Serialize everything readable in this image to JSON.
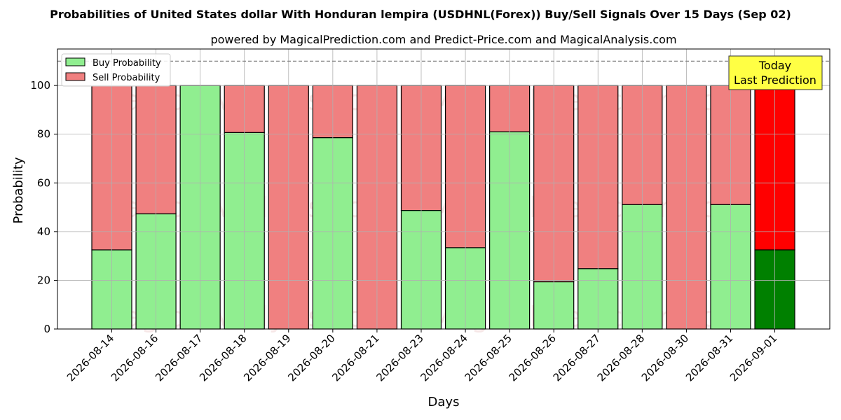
{
  "chart_data": {
    "type": "bar",
    "stacked": true,
    "title": "Probabilities of United States dollar With Honduran lempira (USDHNL(Forex)) Buy/Sell Signals Over 15 Days (Sep 02)",
    "subtitle": "powered by MagicalPrediction.com and Predict-Price.com and MagicalAnalysis.com",
    "xlabel": "Days",
    "ylabel": "Probability",
    "ylim": [
      0,
      115
    ],
    "yticks": [
      0,
      20,
      40,
      60,
      80,
      100
    ],
    "reference_line": 110,
    "grid": true,
    "legend_placement": "top-left",
    "categories": [
      "2026-08-14",
      "2026-08-16",
      "2026-08-17",
      "2026-08-18",
      "2026-08-19",
      "2026-08-20",
      "2026-08-21",
      "2026-08-23",
      "2026-08-24",
      "2026-08-25",
      "2026-08-26",
      "2026-08-27",
      "2026-08-28",
      "2026-08-30",
      "2026-08-31",
      "2026-09-01"
    ],
    "series": [
      {
        "name": "Buy Probability",
        "color": "#90ee90",
        "today_color": "#008000",
        "values": [
          32.5,
          47.3,
          100,
          80.7,
          0,
          78.6,
          0,
          48.7,
          33.4,
          81.0,
          19.4,
          24.8,
          51.1,
          0,
          51.1,
          32.5
        ]
      },
      {
        "name": "Sell Probability",
        "color": "#f08080",
        "today_color": "#ff0000",
        "values": [
          67.5,
          52.7,
          0,
          19.3,
          100,
          21.4,
          100,
          51.3,
          66.6,
          19.0,
          80.6,
          75.2,
          48.9,
          100,
          48.9,
          67.5
        ]
      }
    ],
    "annotation": {
      "line1": "Today",
      "line2": "Last Prediction",
      "color": "#ffff44"
    },
    "watermarks": [
      "MagicalAnalysis.com",
      "MagicalPrediction.com"
    ]
  }
}
